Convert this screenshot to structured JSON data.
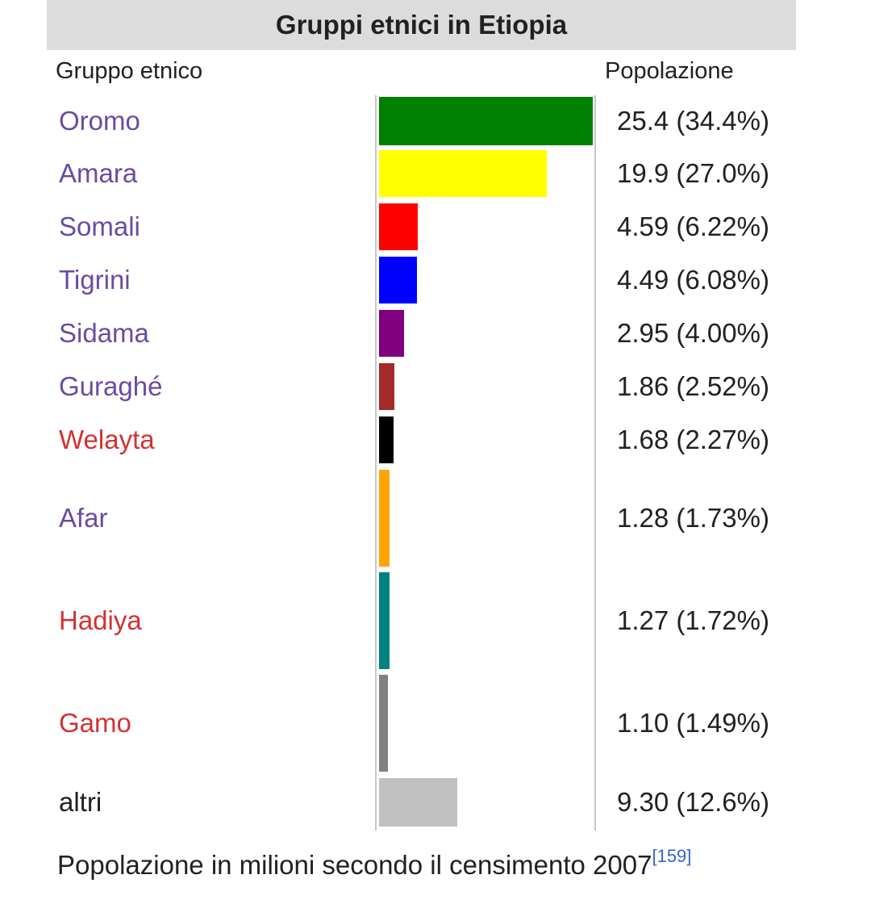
{
  "title": "Gruppi etnici in Etiopia",
  "headers": {
    "group": "Gruppo etnico",
    "population": "Popolazione"
  },
  "caption": "Popolazione in milioni secondo il censimento 2007",
  "caption_ref": "[159]",
  "link_colors": {
    "exists": "#6b4ba1",
    "missing": "#d33232",
    "plain": "#202122"
  },
  "chart_data": {
    "type": "bar",
    "orientation": "horizontal",
    "title": "Gruppi etnici in Etiopia",
    "xlim": [
      0,
      25.4
    ],
    "rows": [
      {
        "group": "Oromo",
        "value": 25.4,
        "label": "25.4 (34.4%)",
        "color": "#008000",
        "link": "exists"
      },
      {
        "group": "Amara",
        "value": 19.9,
        "label": "19.9 (27.0%)",
        "color": "#ffff00",
        "link": "exists"
      },
      {
        "group": "Somali",
        "value": 4.59,
        "label": "4.59 (6.22%)",
        "color": "#ff0000",
        "link": "exists"
      },
      {
        "group": "Tigrini",
        "value": 4.49,
        "label": "4.49 (6.08%)",
        "color": "#0000ff",
        "link": "exists"
      },
      {
        "group": "Sidama",
        "value": 2.95,
        "label": "2.95 (4.00%)",
        "color": "#800080",
        "link": "exists"
      },
      {
        "group": "Guraghé",
        "value": 1.86,
        "label": "1.86 (2.52%)",
        "color": "#a52a2a",
        "link": "exists"
      },
      {
        "group": "Welayta",
        "value": 1.68,
        "label": "1.68 (2.27%)",
        "color": "#000000",
        "link": "missing"
      },
      {
        "group": "Afar",
        "value": 1.28,
        "label": "1.28 (1.73%)",
        "color": "#ffa500",
        "link": "exists"
      },
      {
        "group": "Hadiya",
        "value": 1.27,
        "label": "1.27 (1.72%)",
        "color": "#008080",
        "link": "missing"
      },
      {
        "group": "Gamo",
        "value": 1.1,
        "label": "1.10 (1.49%)",
        "color": "#808080",
        "link": "missing"
      },
      {
        "group": "altri",
        "value": 9.3,
        "label": "9.30 (12.6%)",
        "color": "#c0c0c0",
        "link": "plain"
      }
    ]
  }
}
